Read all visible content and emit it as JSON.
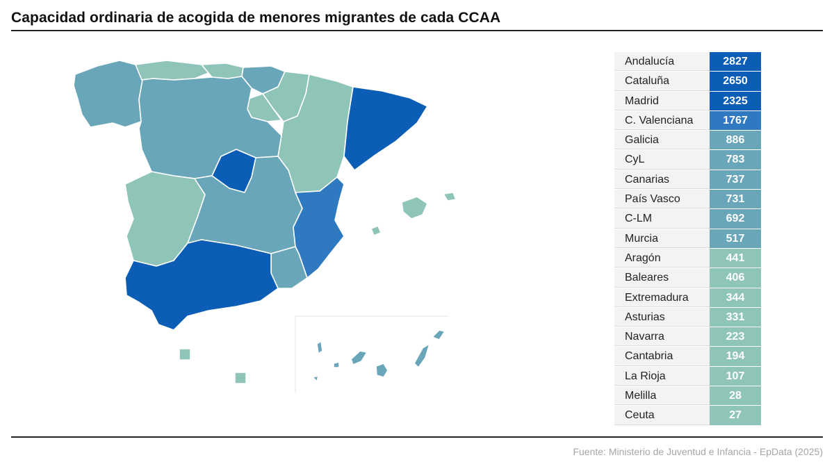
{
  "title": "Capacidad ordinaria de acogida de menores migrantes de cada CCAA",
  "source": "Fuente: Ministerio de Juventud e Infancia - EpData (2025)",
  "colors": {
    "dark": "#0b5db5",
    "mid": "#2e79bf",
    "teal": "#6aa6b9",
    "light": "#8fc4b8"
  },
  "chart_data": {
    "type": "table",
    "rows": [
      {
        "name": "Andalucía",
        "value": "2827"
      },
      {
        "name": "Cataluña",
        "value": "2650"
      },
      {
        "name": "Madrid",
        "value": "2325"
      },
      {
        "name": "C. Valenciana",
        "value": "1767"
      },
      {
        "name": "Galicia",
        "value": "886"
      },
      {
        "name": "CyL",
        "value": "783"
      },
      {
        "name": "Canarias",
        "value": "737"
      },
      {
        "name": "País Vasco",
        "value": "731"
      },
      {
        "name": "C-LM",
        "value": "692"
      },
      {
        "name": "Murcia",
        "value": "517"
      },
      {
        "name": "Aragón",
        "value": "441"
      },
      {
        "name": "Baleares",
        "value": "406"
      },
      {
        "name": "Extremadura",
        "value": "344"
      },
      {
        "name": "Asturias",
        "value": "331"
      },
      {
        "name": "Navarra",
        "value": "223"
      },
      {
        "name": "Cantabria",
        "value": "194"
      },
      {
        "name": "La Rioja",
        "value": "107"
      },
      {
        "name": "Melilla",
        "value": "28"
      },
      {
        "name": "Ceuta",
        "value": "27"
      }
    ]
  }
}
